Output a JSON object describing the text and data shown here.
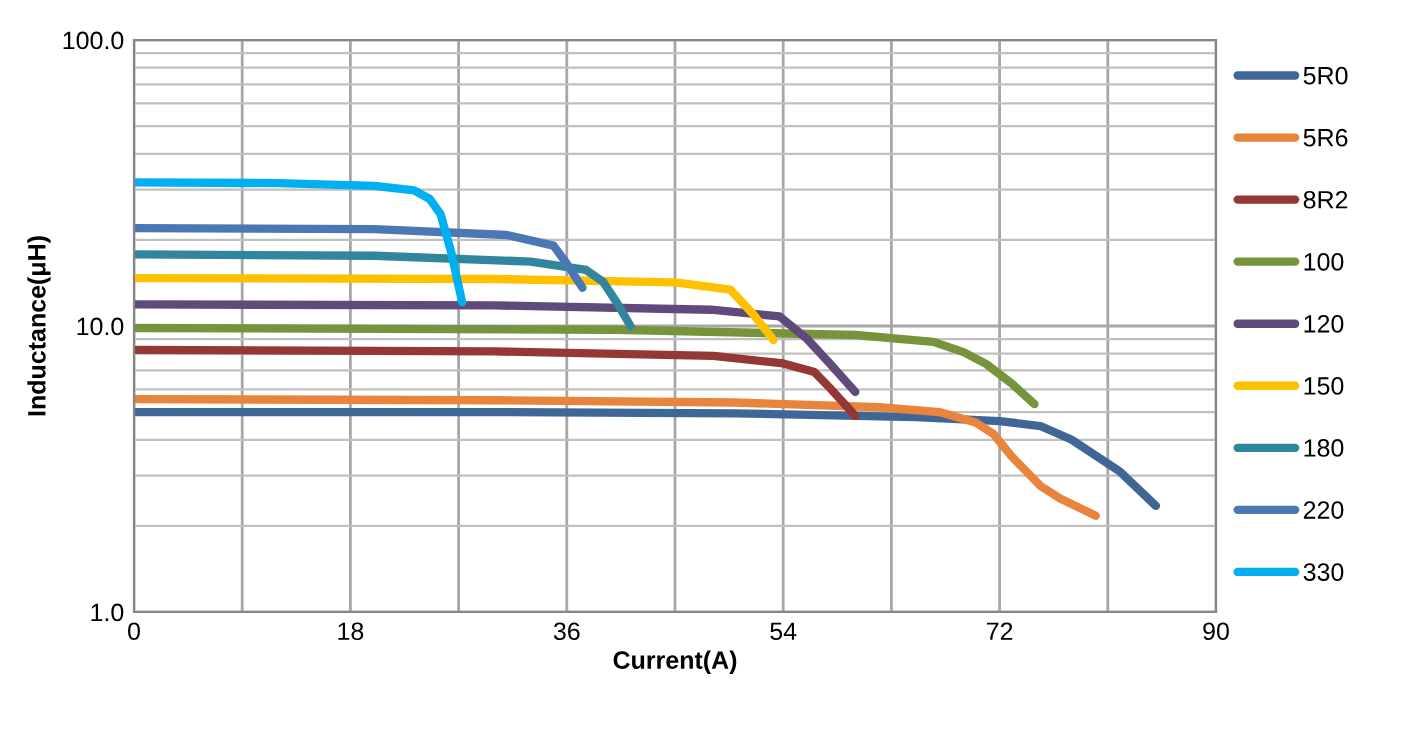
{
  "chart_data": {
    "type": "line",
    "xlabel": "Current(A)",
    "ylabel": "Inductance(μH)",
    "log": "y",
    "xlim": [
      0,
      90
    ],
    "ylim": [
      1,
      100
    ],
    "xticks": [
      0,
      {
        "value": 9,
        "label": null
      },
      18,
      {
        "value": 27,
        "label": null
      },
      36,
      {
        "value": 45,
        "label": null
      },
      54,
      {
        "value": 63,
        "label": null
      },
      72,
      {
        "value": 81,
        "label": null
      },
      90
    ],
    "yticks": [
      {
        "value": 1,
        "label": "1.0"
      },
      {
        "value": 10,
        "label": "10.0"
      },
      {
        "value": 100,
        "label": "100.0"
      }
    ],
    "grid": true,
    "legend": "right",
    "marker": "none",
    "line_style": "solid",
    "series": [
      {
        "name": "5R0",
        "color": "#3f6795",
        "x": [
          0,
          30,
          50,
          65,
          72,
          75.4,
          78,
          82,
          85
        ],
        "values": [
          5.0,
          5.0,
          4.95,
          4.8,
          4.65,
          4.47,
          4.0,
          3.1,
          2.35
        ]
      },
      {
        "name": "5R6",
        "color": "#e8843c",
        "x": [
          0,
          30,
          50,
          62,
          67,
          70,
          71.5,
          73,
          75.4,
          77,
          80
        ],
        "values": [
          5.55,
          5.5,
          5.4,
          5.2,
          5.0,
          4.6,
          4.19,
          3.5,
          2.76,
          2.5,
          2.17
        ]
      },
      {
        "name": "8R2",
        "color": "#953735",
        "x": [
          0,
          30,
          48.2,
          54,
          56.6,
          58,
          60
        ],
        "values": [
          8.25,
          8.15,
          7.86,
          7.4,
          6.9,
          6.0,
          4.85
        ]
      },
      {
        "name": "100",
        "color": "#77933c",
        "x": [
          0,
          40,
          60,
          66.5,
          69,
          70.9,
          73,
          74.9
        ],
        "values": [
          9.84,
          9.7,
          9.3,
          8.8,
          8.1,
          7.36,
          6.3,
          5.33
        ]
      },
      {
        "name": "120",
        "color": "#604a7b",
        "x": [
          0,
          30,
          48,
          53.7,
          56,
          58,
          60
        ],
        "values": [
          11.9,
          11.8,
          11.4,
          10.8,
          9.0,
          7.3,
          5.88
        ]
      },
      {
        "name": "150",
        "color": "#ffc000",
        "x": [
          0,
          30,
          45,
          49.6,
          51.5,
          53.2
        ],
        "values": [
          14.7,
          14.6,
          14.2,
          13.4,
          11.0,
          8.93
        ]
      },
      {
        "name": "180",
        "color": "#31859c",
        "x": [
          0,
          20,
          33,
          37.6,
          39,
          40.2,
          41.3
        ],
        "values": [
          17.8,
          17.6,
          16.8,
          15.7,
          14.3,
          12.0,
          10.0
        ]
      },
      {
        "name": "220",
        "color": "#4a78b5",
        "x": [
          0,
          20,
          31,
          34.9,
          36,
          37.3
        ],
        "values": [
          22.0,
          21.8,
          20.8,
          19.1,
          16.5,
          13.6
        ]
      },
      {
        "name": "330",
        "color": "#00b0f0",
        "x": [
          0,
          12,
          20,
          23.3,
          24.6,
          25.5,
          26.4,
          27.3
        ],
        "values": [
          31.8,
          31.6,
          30.9,
          29.8,
          27.8,
          24.6,
          18.0,
          12.1
        ]
      }
    ]
  }
}
